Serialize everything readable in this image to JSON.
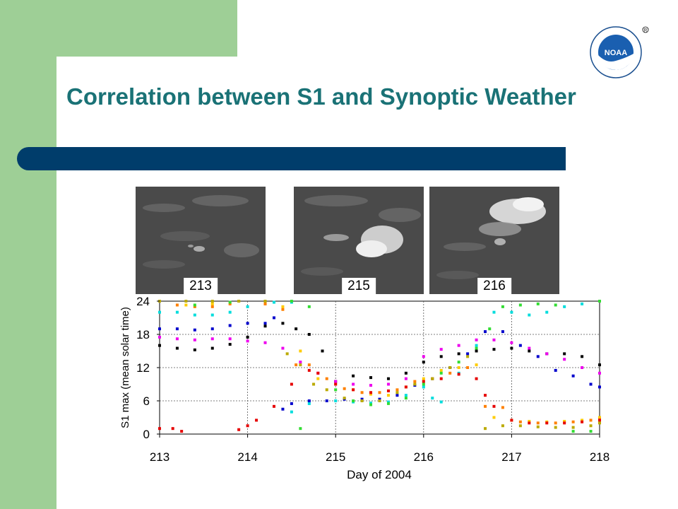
{
  "slide": {
    "title": "Correlation between S1 and Synoptic Weather",
    "logo_text": "NOAA"
  },
  "images": [
    {
      "label": "213"
    },
    {
      "label": "215"
    },
    {
      "label": "216"
    }
  ],
  "chart_data": {
    "type": "scatter",
    "xlabel": "Day of 2004",
    "ylabel": "S1 max (mean solar time)",
    "xlim": [
      213,
      218
    ],
    "ylim": [
      0,
      24
    ],
    "xticks": [
      213,
      214,
      215,
      216,
      217,
      218
    ],
    "yticks": [
      0,
      6,
      12,
      18,
      24
    ],
    "grid": true,
    "series": [
      {
        "color": "#00dddd",
        "points": [
          [
            213.0,
            22.0
          ],
          [
            213.2,
            22.0
          ],
          [
            213.4,
            21.5
          ],
          [
            213.6,
            21.5
          ],
          [
            213.8,
            22.0
          ],
          [
            214.0,
            23.0
          ],
          [
            214.2,
            23.5
          ],
          [
            214.3,
            23.8
          ],
          [
            214.5,
            23.8
          ],
          [
            214.5,
            4.0
          ],
          [
            214.7,
            5.5
          ],
          [
            215.0,
            6.0
          ],
          [
            215.2,
            5.8
          ],
          [
            215.4,
            5.6
          ],
          [
            215.6,
            5.8
          ],
          [
            215.8,
            7.0
          ],
          [
            216.0,
            8.5
          ],
          [
            216.1,
            6.5
          ],
          [
            216.2,
            5.8
          ],
          [
            216.4,
            11.0
          ],
          [
            216.6,
            16.0
          ],
          [
            216.8,
            22.0
          ],
          [
            217.0,
            22.0
          ],
          [
            217.2,
            21.5
          ],
          [
            217.4,
            22.0
          ],
          [
            217.6,
            23.0
          ],
          [
            217.8,
            23.5
          ],
          [
            218.0,
            24.0
          ]
        ]
      },
      {
        "color": "#0000cc",
        "points": [
          [
            213.0,
            19.0
          ],
          [
            213.2,
            19.0
          ],
          [
            213.4,
            18.8
          ],
          [
            213.6,
            19.0
          ],
          [
            213.8,
            19.6
          ],
          [
            214.0,
            20.0
          ],
          [
            214.2,
            20.0
          ],
          [
            214.3,
            21.0
          ],
          [
            214.4,
            4.5
          ],
          [
            214.5,
            5.5
          ],
          [
            214.7,
            6.0
          ],
          [
            214.9,
            6.0
          ],
          [
            215.1,
            6.3
          ],
          [
            215.3,
            6.3
          ],
          [
            215.5,
            6.3
          ],
          [
            215.7,
            7.0
          ],
          [
            215.9,
            8.8
          ],
          [
            216.1,
            10.0
          ],
          [
            216.3,
            12.0
          ],
          [
            216.5,
            14.5
          ],
          [
            216.7,
            18.5
          ],
          [
            216.9,
            18.5
          ],
          [
            217.1,
            16.0
          ],
          [
            217.3,
            14.0
          ],
          [
            217.5,
            11.5
          ],
          [
            217.7,
            10.5
          ],
          [
            217.9,
            9.0
          ],
          [
            218.0,
            8.5
          ]
        ]
      },
      {
        "color": "#000000",
        "points": [
          [
            213.0,
            16.0
          ],
          [
            213.2,
            15.5
          ],
          [
            213.4,
            15.2
          ],
          [
            213.6,
            15.5
          ],
          [
            213.8,
            16.2
          ],
          [
            214.0,
            17.5
          ],
          [
            214.2,
            19.5
          ],
          [
            214.4,
            20.0
          ],
          [
            214.55,
            19.0
          ],
          [
            214.7,
            18.0
          ],
          [
            214.85,
            15.0
          ],
          [
            215.0,
            9.5
          ],
          [
            215.2,
            10.5
          ],
          [
            215.4,
            10.2
          ],
          [
            215.6,
            10.0
          ],
          [
            215.8,
            11.0
          ],
          [
            216.0,
            13.0
          ],
          [
            216.2,
            14.0
          ],
          [
            216.4,
            14.5
          ],
          [
            216.6,
            15.0
          ],
          [
            216.8,
            15.3
          ],
          [
            217.0,
            15.5
          ],
          [
            217.2,
            15.0
          ],
          [
            217.4,
            14.5
          ],
          [
            217.6,
            14.5
          ],
          [
            217.8,
            14.0
          ],
          [
            218.0,
            12.5
          ]
        ]
      },
      {
        "color": "#ee00ee",
        "points": [
          [
            213.0,
            17.5
          ],
          [
            213.2,
            17.2
          ],
          [
            213.4,
            17.0
          ],
          [
            213.6,
            17.2
          ],
          [
            213.8,
            17.2
          ],
          [
            214.0,
            16.8
          ],
          [
            214.2,
            16.5
          ],
          [
            214.4,
            15.5
          ],
          [
            214.6,
            13.0
          ],
          [
            214.8,
            11.0
          ],
          [
            215.0,
            9.5
          ],
          [
            215.2,
            9.0
          ],
          [
            215.4,
            8.8
          ],
          [
            215.6,
            9.0
          ],
          [
            215.8,
            10.0
          ],
          [
            216.0,
            14.0
          ],
          [
            216.2,
            15.3
          ],
          [
            216.4,
            16.0
          ],
          [
            216.6,
            17.0
          ],
          [
            216.8,
            17.0
          ],
          [
            217.0,
            16.5
          ],
          [
            217.2,
            15.5
          ],
          [
            217.4,
            14.5
          ],
          [
            217.6,
            13.5
          ],
          [
            217.8,
            12.0
          ],
          [
            218.0,
            11.0
          ]
        ]
      },
      {
        "color": "#ffcc00",
        "points": [
          [
            213.0,
            24.0
          ],
          [
            213.3,
            23.3
          ],
          [
            213.6,
            23.5
          ],
          [
            213.9,
            24.0
          ],
          [
            214.2,
            23.5
          ],
          [
            214.4,
            23.0
          ],
          [
            214.6,
            15.0
          ],
          [
            214.8,
            10.0
          ],
          [
            215.0,
            9.0
          ],
          [
            215.2,
            8.0
          ],
          [
            215.4,
            7.2
          ],
          [
            215.6,
            7.0
          ],
          [
            215.8,
            8.5
          ],
          [
            216.0,
            10.0
          ],
          [
            216.2,
            11.5
          ],
          [
            216.4,
            12.0
          ],
          [
            216.6,
            12.5
          ],
          [
            216.8,
            3.0
          ],
          [
            217.0,
            2.5
          ],
          [
            217.2,
            2.3
          ],
          [
            217.4,
            2.2
          ],
          [
            217.6,
            2.3
          ],
          [
            217.8,
            2.5
          ],
          [
            218.0,
            3.0
          ]
        ]
      },
      {
        "color": "#ff8000",
        "points": [
          [
            213.0,
            24.0
          ],
          [
            213.2,
            23.3
          ],
          [
            213.4,
            23.0
          ],
          [
            213.6,
            23.0
          ],
          [
            213.8,
            23.5
          ],
          [
            214.2,
            23.5
          ],
          [
            214.4,
            22.5
          ],
          [
            214.55,
            12.5
          ],
          [
            214.7,
            12.5
          ],
          [
            214.9,
            10.0
          ],
          [
            215.1,
            8.2
          ],
          [
            215.3,
            7.5
          ],
          [
            215.5,
            7.5
          ],
          [
            215.7,
            8.0
          ],
          [
            215.9,
            9.5
          ],
          [
            216.1,
            10.0
          ],
          [
            216.3,
            11.0
          ],
          [
            216.5,
            12.0
          ],
          [
            216.7,
            5.0
          ],
          [
            216.9,
            4.8
          ],
          [
            217.1,
            2.2
          ],
          [
            217.3,
            2.0
          ],
          [
            217.5,
            2.0
          ],
          [
            217.7,
            2.2
          ],
          [
            217.9,
            2.5
          ],
          [
            218.0,
            2.6
          ]
        ]
      },
      {
        "color": "#e60000",
        "points": [
          [
            213.0,
            1.0
          ],
          [
            213.15,
            1.0
          ],
          [
            213.25,
            0.5
          ],
          [
            213.9,
            0.8
          ],
          [
            214.0,
            1.5
          ],
          [
            214.1,
            2.5
          ],
          [
            214.3,
            5.0
          ],
          [
            214.5,
            9.0
          ],
          [
            214.7,
            11.5
          ],
          [
            214.8,
            11.0
          ],
          [
            215.0,
            9.0
          ],
          [
            215.2,
            8.0
          ],
          [
            215.4,
            7.5
          ],
          [
            215.6,
            7.8
          ],
          [
            215.8,
            8.5
          ],
          [
            216.0,
            9.5
          ],
          [
            216.2,
            10.0
          ],
          [
            216.4,
            10.8
          ],
          [
            216.6,
            10.0
          ],
          [
            216.7,
            7.0
          ],
          [
            216.8,
            5.0
          ],
          [
            217.0,
            2.5
          ],
          [
            217.2,
            2.0
          ],
          [
            217.4,
            2.0
          ],
          [
            217.6,
            2.0
          ],
          [
            217.8,
            2.2
          ],
          [
            218.0,
            2.5
          ]
        ]
      },
      {
        "color": "#33dd33",
        "points": [
          [
            213.0,
            24.0
          ],
          [
            213.4,
            23.3
          ],
          [
            213.8,
            23.8
          ],
          [
            214.2,
            24.0
          ],
          [
            214.5,
            24.0
          ],
          [
            214.6,
            1.0
          ],
          [
            214.7,
            23.0
          ],
          [
            215.0,
            8.0
          ],
          [
            215.2,
            6.0
          ],
          [
            215.4,
            5.3
          ],
          [
            215.6,
            5.5
          ],
          [
            215.8,
            6.5
          ],
          [
            216.0,
            9.0
          ],
          [
            216.2,
            11.0
          ],
          [
            216.4,
            13.0
          ],
          [
            216.6,
            15.5
          ],
          [
            216.75,
            19.0
          ],
          [
            216.9,
            23.0
          ],
          [
            217.1,
            23.3
          ],
          [
            217.3,
            23.5
          ],
          [
            217.5,
            23.3
          ],
          [
            217.7,
            0.5
          ],
          [
            217.9,
            0.5
          ],
          [
            218.0,
            24.0
          ]
        ]
      },
      {
        "color": "#bbaa00",
        "points": [
          [
            213.0,
            24.0
          ],
          [
            213.3,
            24.0
          ],
          [
            213.6,
            24.0
          ],
          [
            213.9,
            24.0
          ],
          [
            214.2,
            24.0
          ],
          [
            214.45,
            14.5
          ],
          [
            214.6,
            12.5
          ],
          [
            214.75,
            9.0
          ],
          [
            214.9,
            8.0
          ],
          [
            215.1,
            6.5
          ],
          [
            215.3,
            6.0
          ],
          [
            215.5,
            6.0
          ],
          [
            215.7,
            7.5
          ],
          [
            215.9,
            9.0
          ],
          [
            216.1,
            10.0
          ],
          [
            216.3,
            12.0
          ],
          [
            216.5,
            14.0
          ],
          [
            216.7,
            1.0
          ],
          [
            216.9,
            1.5
          ],
          [
            217.1,
            1.5
          ],
          [
            217.3,
            1.3
          ],
          [
            217.5,
            1.2
          ],
          [
            217.7,
            1.2
          ],
          [
            217.9,
            1.5
          ],
          [
            218.0,
            2.0
          ]
        ]
      }
    ]
  }
}
